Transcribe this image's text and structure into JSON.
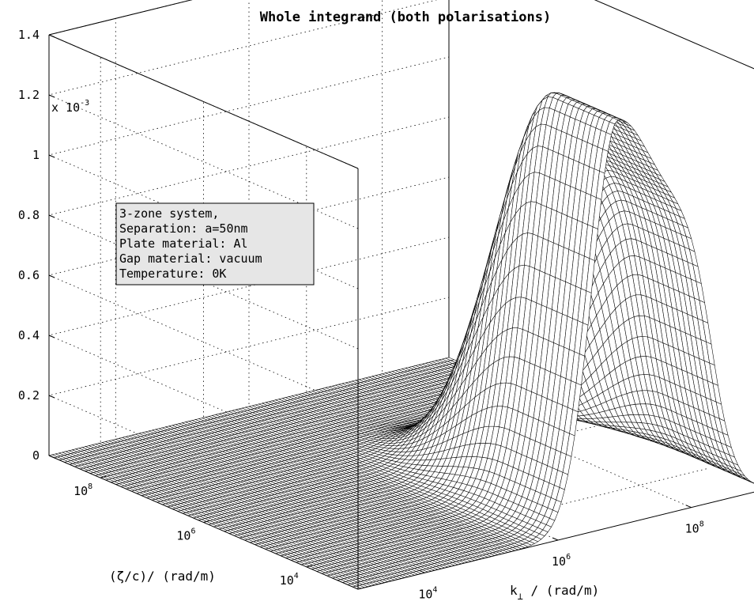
{
  "chart_data": {
    "type": "surface",
    "title": "Whole integrand (both polarisations)",
    "zlabel_multiplier": "x 10",
    "zlabel_multiplier_exponent": "-3",
    "zlim": [
      0,
      1.4
    ],
    "z_ticks": [
      {
        "value": 0,
        "label": "0"
      },
      {
        "value": 0.2,
        "label": "0.2"
      },
      {
        "value": 0.4,
        "label": "0.4"
      },
      {
        "value": 0.6,
        "label": "0.6"
      },
      {
        "value": 0.8,
        "label": "0.8"
      },
      {
        "value": 1.0,
        "label": "1"
      },
      {
        "value": 1.2,
        "label": "1.2"
      },
      {
        "value": 1.4,
        "label": "1.4"
      }
    ],
    "zeta_axis": {
      "label": "(ζ/c)/ (rad/m)",
      "log_range": [
        3,
        9
      ],
      "ticks": [
        {
          "exp": 4,
          "base": "10",
          "sup": "4"
        },
        {
          "exp": 6,
          "base": "10",
          "sup": "6"
        },
        {
          "exp": 8,
          "base": "10",
          "sup": "8"
        }
      ]
    },
    "k_axis": {
      "label_main": "k",
      "label_sub": "⊥",
      "label_rest": " / (rad/m)",
      "log_range": [
        3,
        9
      ],
      "ticks": [
        {
          "exp": 4,
          "base": "10",
          "sup": "4"
        },
        {
          "exp": 6,
          "base": "10",
          "sup": "6"
        },
        {
          "exp": 8,
          "base": "10",
          "sup": "8"
        }
      ]
    },
    "surface_model": {
      "description_free": true,
      "peak_z": 1.35,
      "peak_log_k": 6.9,
      "cutoff_log_k_start": 8.3,
      "cutoff_width": 0.18,
      "k_decay_lower": 0.55,
      "zeta_decay": 0.9
    },
    "legend": {
      "lines": [
        "3-zone system,",
        "Separation: a=50nm",
        "Plate material: Al",
        "Gap material: vacuum",
        "Temperature: 0K"
      ],
      "background": "#e6e6e6"
    },
    "grid": true
  }
}
